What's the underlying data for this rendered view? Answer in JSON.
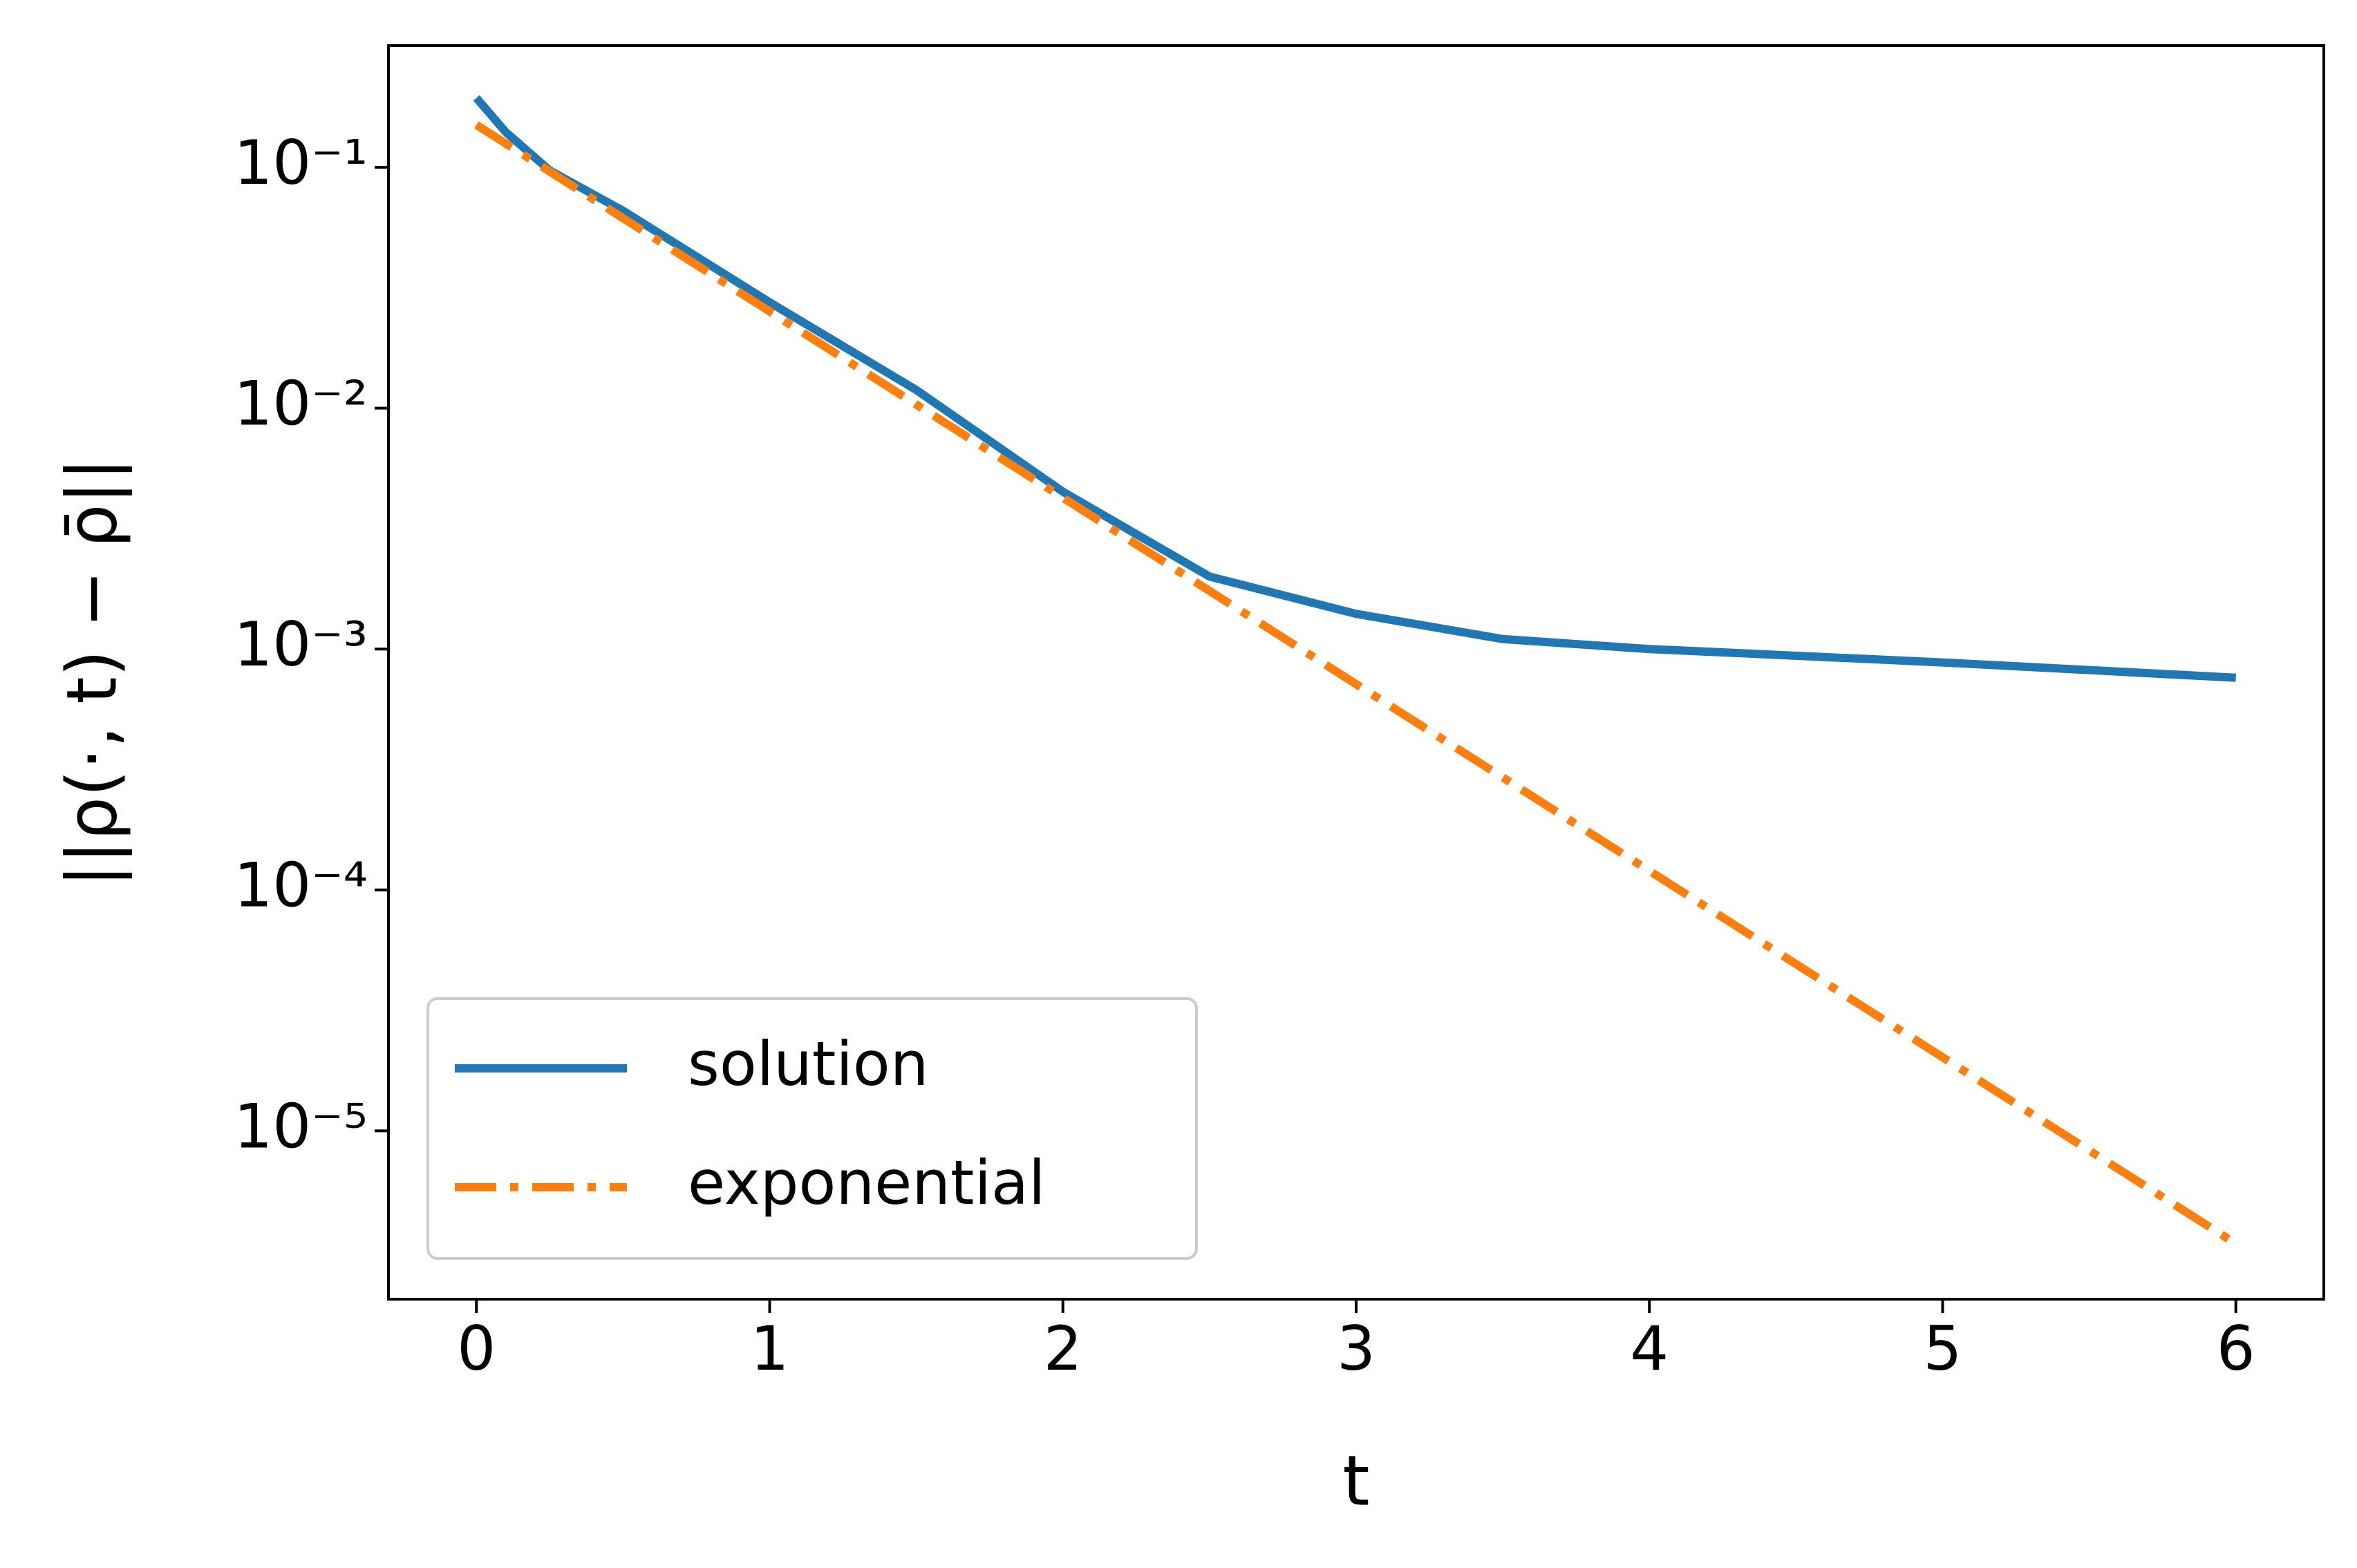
{
  "chart_data": {
    "type": "line",
    "x_label": "t",
    "y_label": "||ρ(·, t) − ρ̄||",
    "log_y": true,
    "xlim": [
      -0.3,
      6.3
    ],
    "xticks": [
      0,
      1,
      2,
      3,
      4,
      5,
      6
    ],
    "ylim": [
      2e-06,
      0.32
    ],
    "yticks": [
      {
        "value": 0.1,
        "label": "10⁻¹"
      },
      {
        "value": 0.01,
        "label": "10⁻²"
      },
      {
        "value": 0.001,
        "label": "10⁻³"
      },
      {
        "value": 0.0001,
        "label": "10⁻⁴"
      },
      {
        "value": 1e-05,
        "label": "10⁻⁵"
      }
    ],
    "legend": "lower left",
    "series": [
      {
        "name": "solution",
        "color": "#1f77b4",
        "style": "solid",
        "x": [
          0,
          0.1,
          0.25,
          0.5,
          1,
          1.5,
          2,
          2.5,
          3,
          3.5,
          4,
          5,
          6
        ],
        "values": [
          0.194,
          0.14,
          0.097,
          0.066,
          0.0275,
          0.0119,
          0.0045,
          0.002,
          0.0014,
          0.0011,
          0.001,
          0.00088,
          0.00076
        ]
      },
      {
        "name": "exponential",
        "color": "#ff7f0e",
        "style": "dashdot",
        "x": [
          0,
          1,
          2,
          3,
          4,
          5,
          6
        ],
        "values": [
          0.15,
          0.0252,
          0.00425,
          0.000715,
          0.00012,
          2.02e-05,
          3.4e-06
        ]
      }
    ]
  }
}
